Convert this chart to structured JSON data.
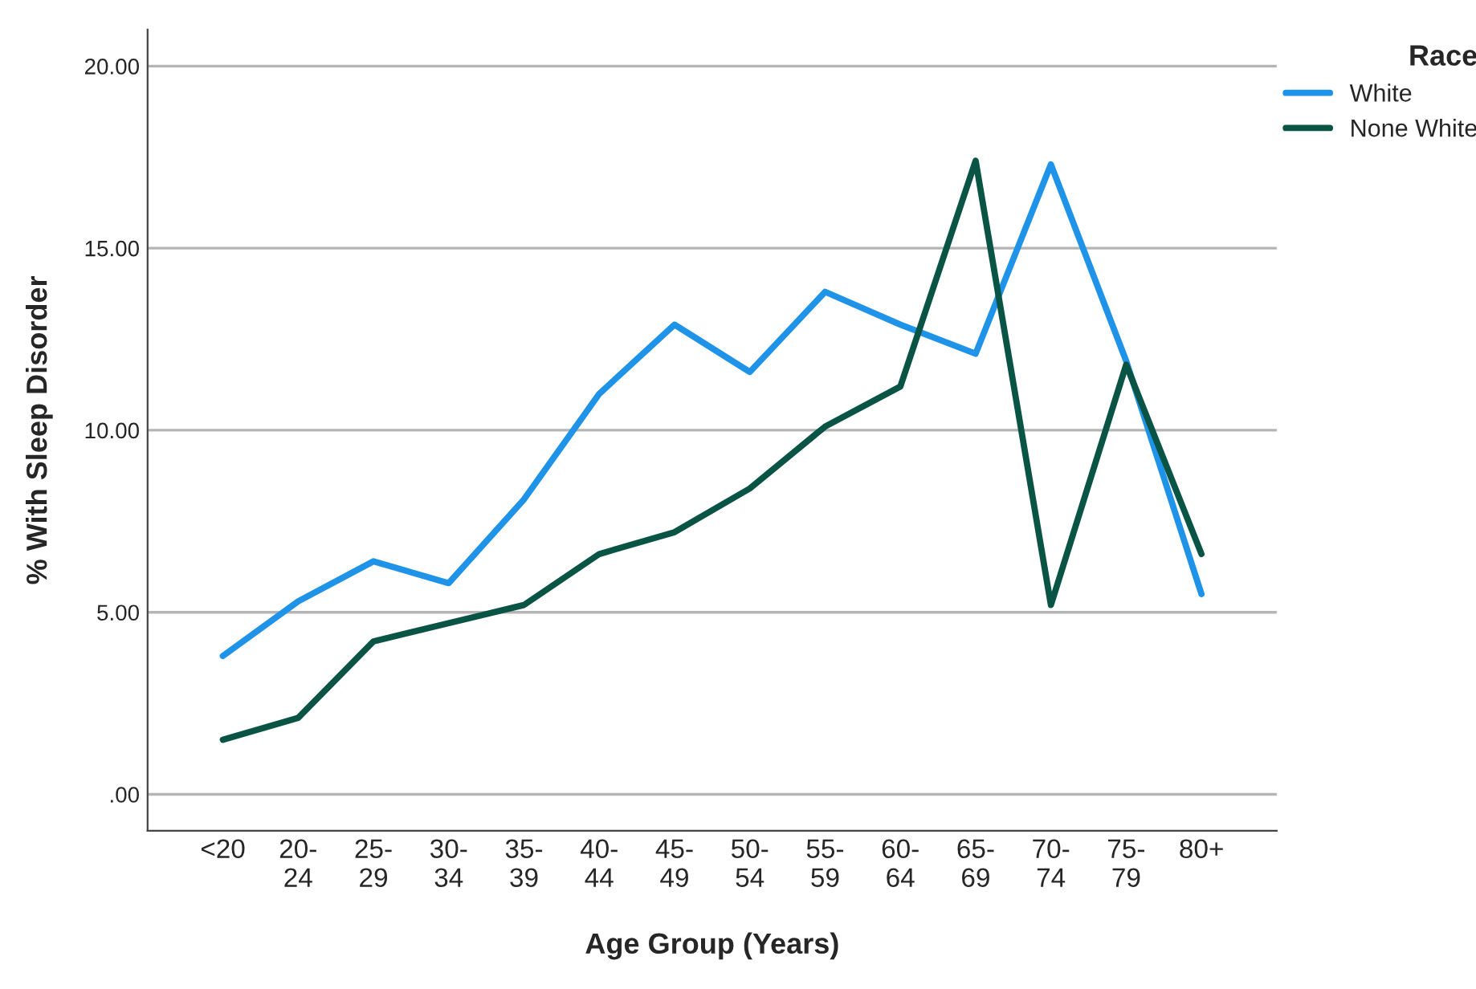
{
  "chart_data": {
    "type": "line",
    "xlabel": "Age Group (Years)",
    "ylabel": "% With Sleep Disorder",
    "legend_title": "Race",
    "legend": "top right",
    "grid": "y",
    "line_style": "solid",
    "categories": [
      "<20",
      "20-\n24",
      "25-\n29",
      "30-\n34",
      "35-\n39",
      "40-\n44",
      "45-\n49",
      "50-\n54",
      "55-\n59",
      "60-\n64",
      "65-\n69",
      "70-\n74",
      "75-\n79",
      "80+"
    ],
    "ylim": [
      -1,
      21
    ],
    "yticks": [
      {
        "value": 0,
        "label": ".00"
      },
      {
        "value": 5,
        "label": "5.00"
      },
      {
        "value": 10,
        "label": "10.00"
      },
      {
        "value": 15,
        "label": "15.00"
      },
      {
        "value": 20,
        "label": "20.00"
      }
    ],
    "series": [
      {
        "name": "White",
        "color": "#1f93e8",
        "values": [
          3.8,
          5.3,
          6.4,
          5.8,
          8.1,
          11.0,
          12.9,
          11.6,
          13.8,
          12.9,
          12.1,
          17.3,
          11.9,
          5.5
        ]
      },
      {
        "name": "None White",
        "color": "#0a5446",
        "values": [
          1.5,
          2.1,
          4.2,
          4.7,
          5.2,
          6.6,
          7.2,
          8.4,
          10.1,
          11.2,
          17.4,
          5.2,
          11.8,
          6.6
        ]
      }
    ]
  }
}
